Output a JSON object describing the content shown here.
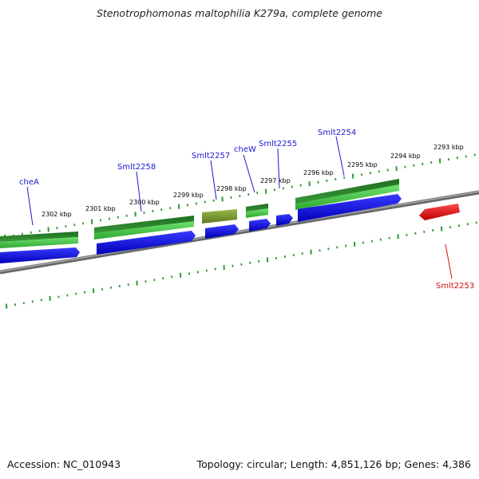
{
  "title": "Stenotrophomonas maltophilia K279a, complete genome",
  "footer": {
    "accession": "Accession: NC_010943",
    "stats": "Topology: circular; Length: 4,851,126 bp; Genes: 4,386"
  },
  "ruler_labels": [
    "2302 kbp",
    "2301 kbp",
    "2300 kbp",
    "2299 kbp",
    "2298 kbp",
    "2297 kbp",
    "2296 kbp",
    "2295 kbp",
    "2294 kbp",
    "2293 kbp"
  ],
  "gene_labels": [
    "cheA",
    "Smlt2258",
    "Smlt2257",
    "cheW",
    "Smlt2255",
    "Smlt2254",
    "Smlt2253"
  ],
  "colors": {
    "label_blue": "#1a1acd",
    "label_red": "#cc1111",
    "tick_green": "#2e9a2e",
    "backbone": "#7a7a7a",
    "gene_blue": "#0a0ae0",
    "gene_green_dark": "#2b8a2b",
    "gene_green_light": "#55d055",
    "gene_olive": "#7d9a2e",
    "gene_red": "#e01010"
  }
}
